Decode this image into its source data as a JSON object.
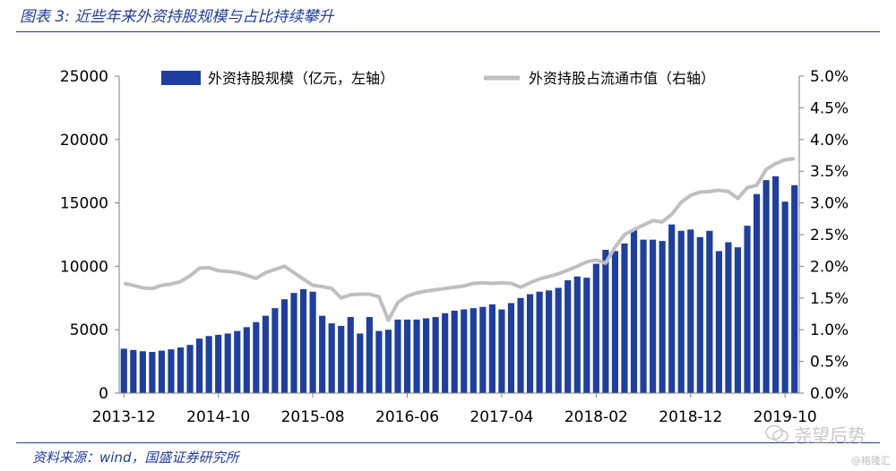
{
  "figure": {
    "title": "图表 3:  近些年来外资持股规模与占比持续攀升",
    "source": "资料来源：wind，国盛证券研究所",
    "watermark": "尧望后势",
    "watermark_small": "@格隆汇"
  },
  "chart_data": {
    "type": "bar+line",
    "title": "",
    "xlabel": "",
    "ylabel_left": "",
    "ylabel_right": "",
    "ylim_left": [
      0,
      25000
    ],
    "ylim_right": [
      0,
      5.0
    ],
    "yticks_left": [
      "0",
      "5000",
      "10000",
      "15000",
      "20000",
      "25000"
    ],
    "yticks_right": [
      "0.0%",
      "0.5%",
      "1.0%",
      "1.5%",
      "2.0%",
      "2.5%",
      "3.0%",
      "3.5%",
      "4.0%",
      "4.5%",
      "5.0%"
    ],
    "xtick_labels": [
      "2013-12",
      "2014-10",
      "2015-08",
      "2016-06",
      "2017-04",
      "2018-02",
      "2018-12",
      "2019-10"
    ],
    "legend": {
      "placement": "top"
    },
    "colors": {
      "bar": "#1f3fa0",
      "line": "#bfbfbf"
    },
    "categories": [
      "2013-12",
      "2014-01",
      "2014-02",
      "2014-03",
      "2014-04",
      "2014-05",
      "2014-06",
      "2014-07",
      "2014-08",
      "2014-09",
      "2014-10",
      "2014-11",
      "2014-12",
      "2015-01",
      "2015-02",
      "2015-03",
      "2015-04",
      "2015-05",
      "2015-06",
      "2015-07",
      "2015-08",
      "2015-09",
      "2015-10",
      "2015-11",
      "2015-12",
      "2016-01",
      "2016-02",
      "2016-03",
      "2016-04",
      "2016-05",
      "2016-06",
      "2016-07",
      "2016-08",
      "2016-09",
      "2016-10",
      "2016-11",
      "2016-12",
      "2017-01",
      "2017-02",
      "2017-03",
      "2017-04",
      "2017-05",
      "2017-06",
      "2017-07",
      "2017-08",
      "2017-09",
      "2017-10",
      "2017-11",
      "2017-12",
      "2018-01",
      "2018-02",
      "2018-03",
      "2018-04",
      "2018-05",
      "2018-06",
      "2018-07",
      "2018-08",
      "2018-09",
      "2018-10",
      "2018-11",
      "2018-12",
      "2019-01",
      "2019-02",
      "2019-03",
      "2019-04",
      "2019-05",
      "2019-06",
      "2019-07",
      "2019-08",
      "2019-09",
      "2019-10",
      "2019-11"
    ],
    "series": [
      {
        "name": "外资持股规模（亿元，左轴）",
        "axis": "left",
        "kind": "bar",
        "values": [
          3500,
          3400,
          3300,
          3250,
          3350,
          3450,
          3600,
          3800,
          4300,
          4500,
          4600,
          4700,
          4900,
          5200,
          5600,
          6100,
          6700,
          7400,
          7900,
          8200,
          8000,
          6100,
          5500,
          5300,
          6000,
          4700,
          6000,
          4900,
          5000,
          5800,
          5800,
          5800,
          5900,
          6000,
          6300,
          6500,
          6600,
          6700,
          6800,
          7000,
          6600,
          7100,
          7500,
          7800,
          8000,
          8100,
          8300,
          8900,
          9200,
          9100,
          10200,
          11300,
          11200,
          11800,
          12900,
          12100,
          12100,
          12000,
          13300,
          12800,
          12900,
          12300,
          12800,
          11200,
          11900,
          11500,
          13200,
          15700,
          16800,
          17100,
          15100,
          16400
        ]
      },
      {
        "name": "外资持股占流通市值（右轴）",
        "axis": "right",
        "kind": "line",
        "values": [
          1.73,
          1.7,
          1.66,
          1.65,
          1.7,
          1.72,
          1.76,
          1.85,
          1.97,
          1.98,
          1.93,
          1.92,
          1.9,
          1.86,
          1.81,
          1.9,
          1.95,
          2.0,
          1.9,
          1.8,
          1.7,
          1.68,
          1.65,
          1.5,
          1.55,
          1.56,
          1.56,
          1.52,
          1.15,
          1.43,
          1.53,
          1.58,
          1.61,
          1.63,
          1.65,
          1.67,
          1.69,
          1.73,
          1.74,
          1.73,
          1.74,
          1.73,
          1.67,
          1.74,
          1.8,
          1.84,
          1.88,
          1.94,
          2.0,
          2.07,
          2.1,
          2.05,
          2.3,
          2.5,
          2.58,
          2.65,
          2.72,
          2.7,
          2.82,
          3.01,
          3.12,
          3.17,
          3.18,
          3.2,
          3.18,
          3.07,
          3.24,
          3.28,
          3.53,
          3.62,
          3.68,
          3.7
        ]
      }
    ]
  }
}
